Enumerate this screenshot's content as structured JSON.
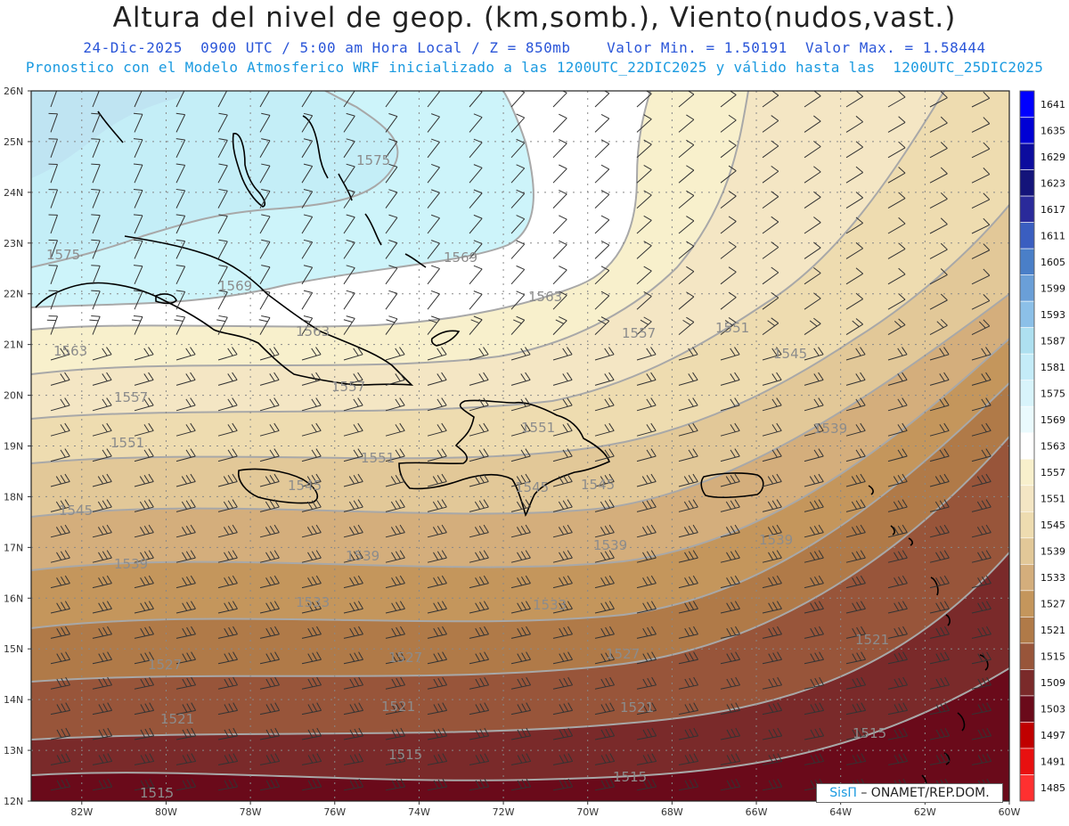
{
  "header": {
    "title": "Altura del nivel de geop. (km,somb.), Viento(nudos,vast.)",
    "line1": "24-Dic-2025  0900 UTC / 5:00 am Hora Local / Z = 850mb    Valor Min. = 1.50191  Valor Max. = 1.58444",
    "line2": "Pronostico con el Modelo Atmosferico WRF inicializado a las 1200UTC_22DIC2025 y válido hasta las  1200UTC_25DIC2025"
  },
  "map": {
    "lat_labels": [
      "26N",
      "25N",
      "24N",
      "23N",
      "22N",
      "21N",
      "20N",
      "19N",
      "18N",
      "17N",
      "16N",
      "15N",
      "14N",
      "13N",
      "12N"
    ],
    "lon_labels": [
      "82W",
      "80W",
      "78W",
      "76W",
      "74W",
      "72W",
      "70W",
      "68W",
      "66W",
      "64W",
      "62W",
      "60W"
    ],
    "contour_labels": [
      {
        "text": "1575",
        "pos": "Bahamas"
      },
      {
        "text": "1575",
        "pos": "Cuba west"
      },
      {
        "text": "1569",
        "pos": "Cuba north"
      },
      {
        "text": "1569",
        "pos": "Turks north"
      },
      {
        "text": "1563",
        "pos": "west"
      },
      {
        "text": "1563",
        "pos": "Cuba east"
      },
      {
        "text": "1563",
        "pos": "Turks"
      },
      {
        "text": "1557",
        "pos": "west"
      },
      {
        "text": "1557",
        "pos": "Jamaica north"
      },
      {
        "text": "1557",
        "pos": "Atlantic"
      },
      {
        "text": "1551",
        "pos": "west"
      },
      {
        "text": "1551",
        "pos": "Haiti north"
      },
      {
        "text": "1551",
        "pos": "Hispaniola"
      },
      {
        "text": "1551",
        "pos": "Atlantic"
      },
      {
        "text": "1545",
        "pos": "west"
      },
      {
        "text": "1545",
        "pos": "Jamaica"
      },
      {
        "text": "1545",
        "pos": "Hispaniola south"
      },
      {
        "text": "1545",
        "pos": "Hispaniola east"
      },
      {
        "text": "1545",
        "pos": "Atlantic"
      },
      {
        "text": "1539",
        "pos": "west"
      },
      {
        "text": "1539",
        "pos": "central"
      },
      {
        "text": "1539",
        "pos": "south"
      },
      {
        "text": "1539",
        "pos": "east"
      },
      {
        "text": "1539",
        "pos": "Atlantic"
      },
      {
        "text": "1533",
        "pos": "west"
      },
      {
        "text": "1533",
        "pos": "central"
      },
      {
        "text": "1527",
        "pos": "west"
      },
      {
        "text": "1527",
        "pos": "central"
      },
      {
        "text": "1527",
        "pos": "east"
      },
      {
        "text": "1521",
        "pos": "west"
      },
      {
        "text": "1521",
        "pos": "central"
      },
      {
        "text": "1521",
        "pos": "east"
      },
      {
        "text": "1521",
        "pos": "far east"
      },
      {
        "text": "1515",
        "pos": "west"
      },
      {
        "text": "1515",
        "pos": "central"
      },
      {
        "text": "1515",
        "pos": "east"
      },
      {
        "text": "1515",
        "pos": "far east"
      }
    ]
  },
  "colorbar": {
    "levels": [
      "1641",
      "1635",
      "1629",
      "1623",
      "1617",
      "1611",
      "1605",
      "1599",
      "1593",
      "1587",
      "1581",
      "1575",
      "1569",
      "1563",
      "1557",
      "1551",
      "1545",
      "1539",
      "1533",
      "1527",
      "1521",
      "1515",
      "1509",
      "1503",
      "1497",
      "1491",
      "1485"
    ],
    "colors": [
      "#0000ff",
      "#0000d4",
      "#0c0c9e",
      "#14147a",
      "#2a2a9a",
      "#3a5ec0",
      "#4a7fc8",
      "#6a9fd8",
      "#8cc0e8",
      "#aee0f0",
      "#c4ecf8",
      "#d8f4fb",
      "#eafafd",
      "#ffffff",
      "#f8f0cc",
      "#f4e6c4",
      "#eedcb0",
      "#e2c898",
      "#d4ae7c",
      "#c4965c",
      "#b07a48",
      "#98553a",
      "#7a2a2a",
      "#6a0a1a",
      "#c00000",
      "#e81010",
      "#ff3030"
    ]
  },
  "credit": {
    "brand": "SisΠ",
    "rest": " – ONAMET/REP.DOM."
  }
}
